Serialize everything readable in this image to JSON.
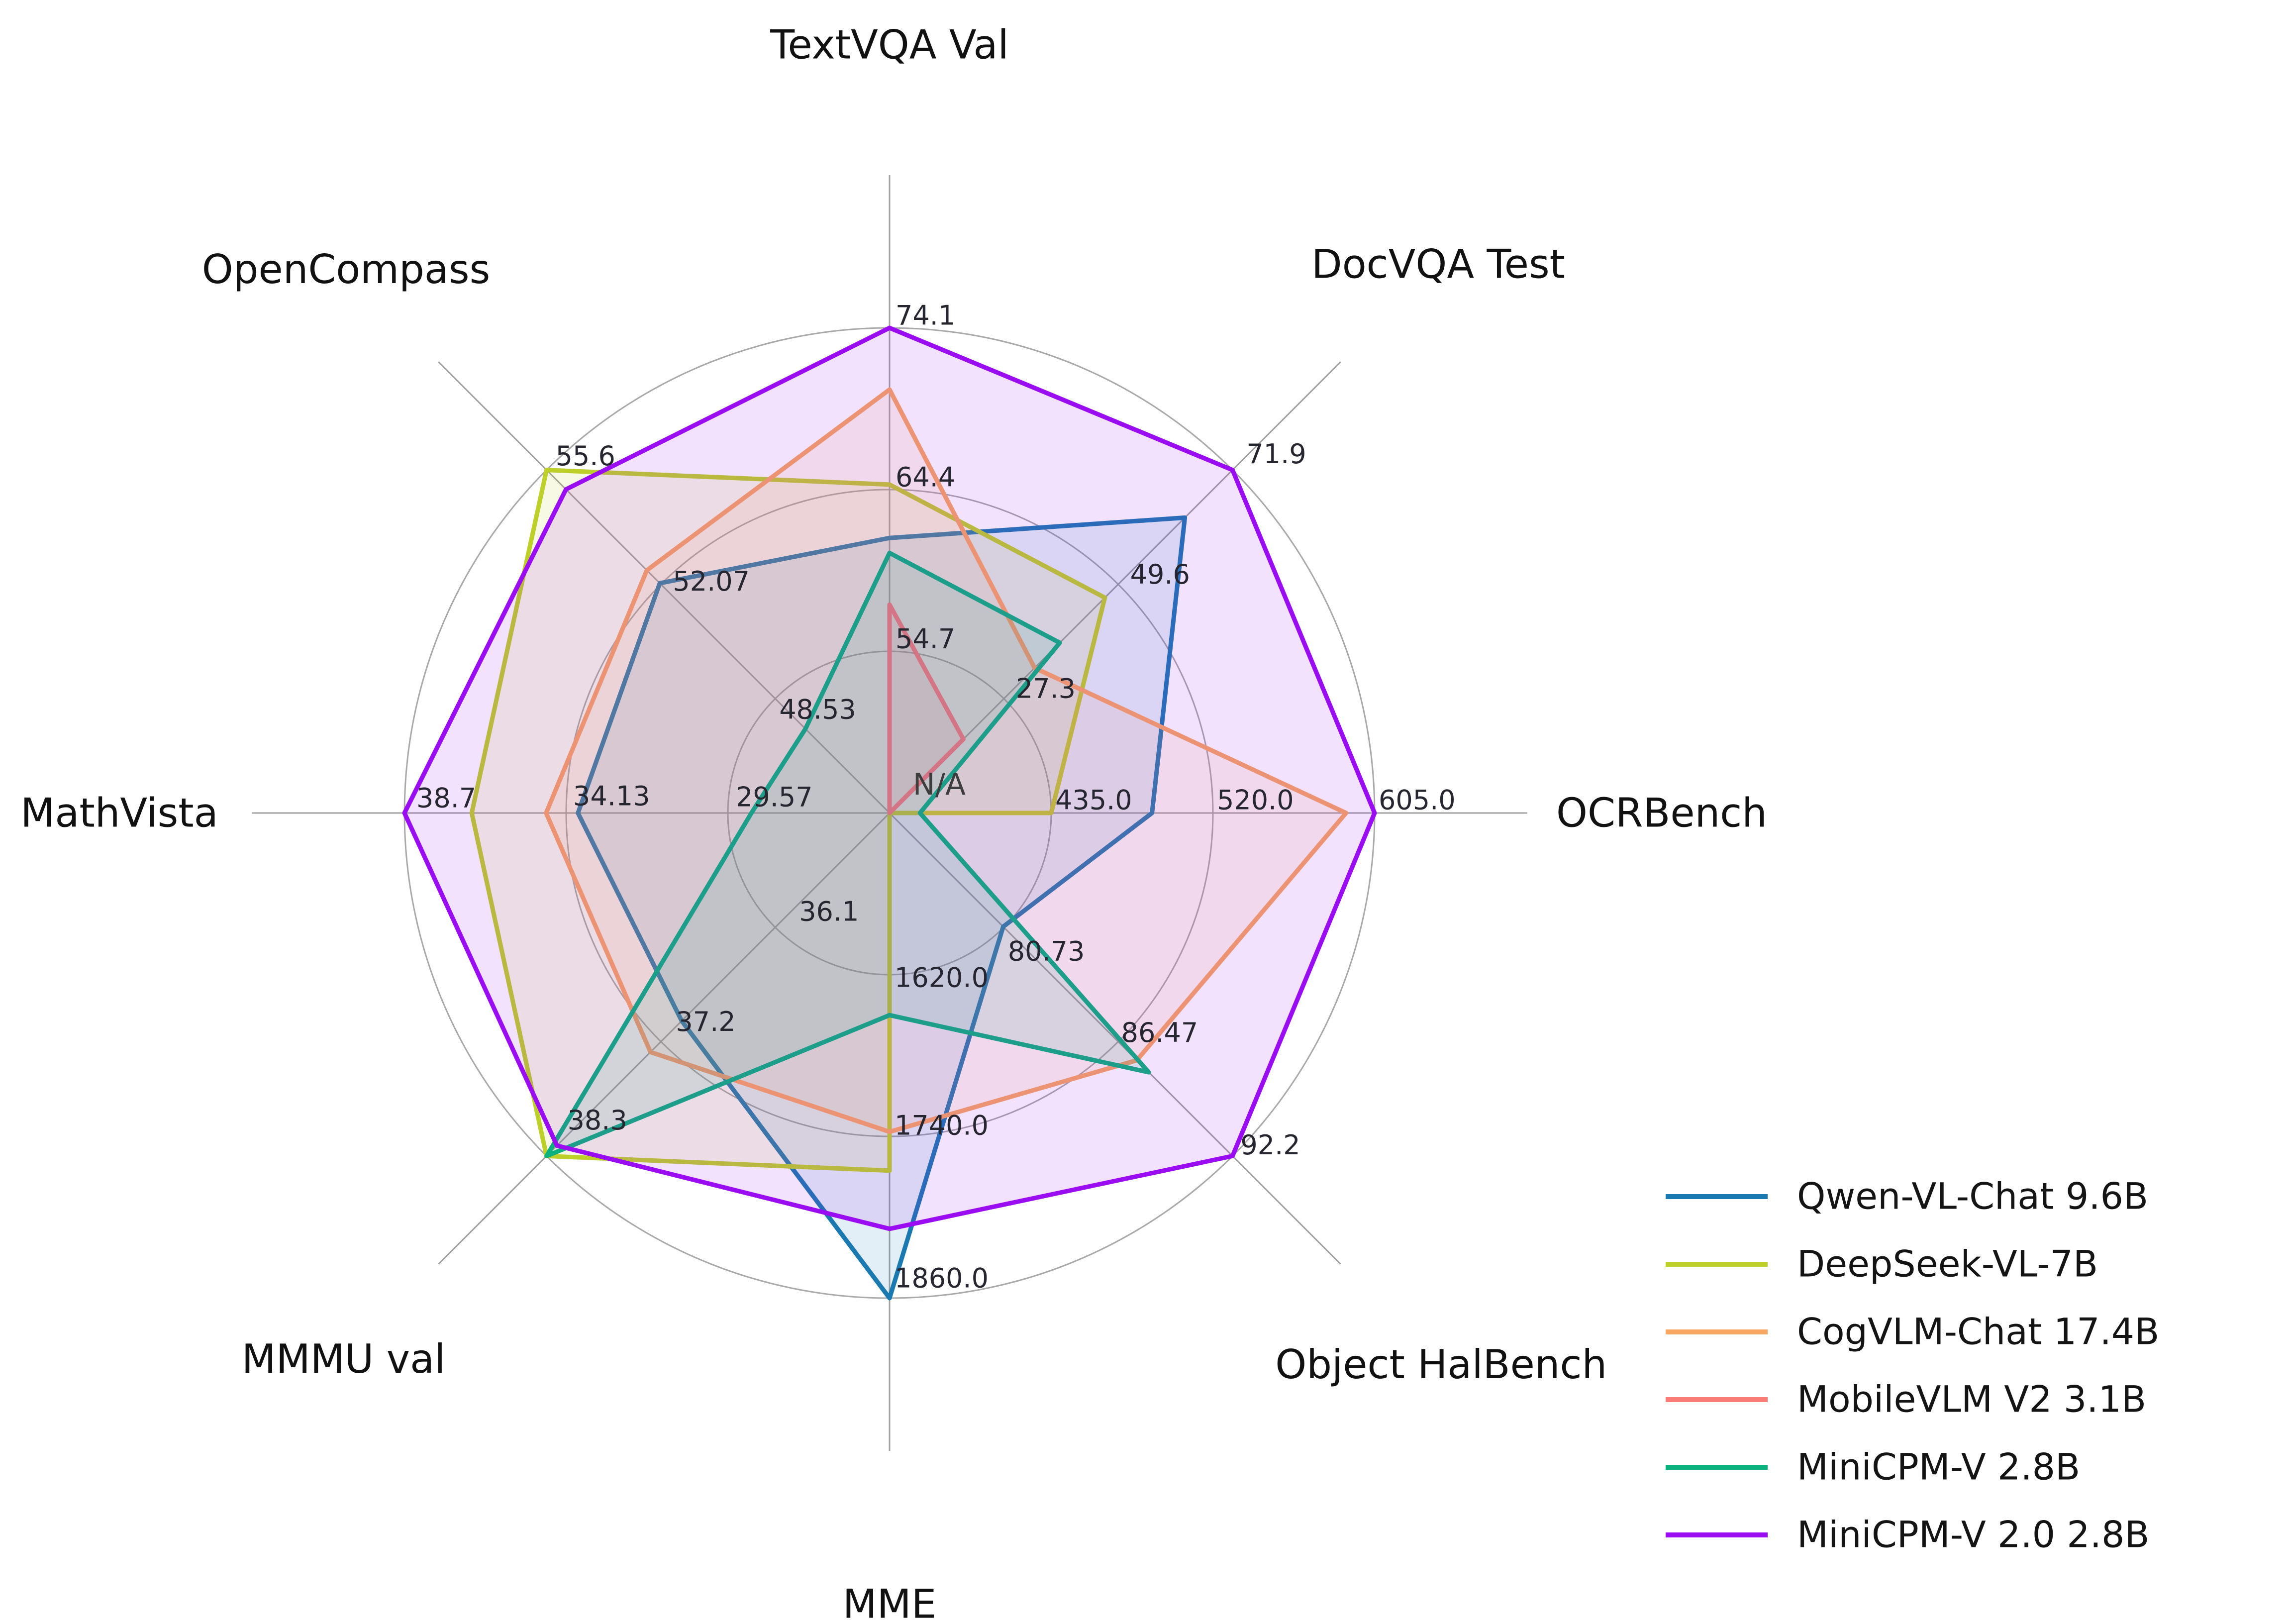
{
  "figure": {
    "background": "#ffffff",
    "missing_value_label": "N/A"
  },
  "chart_data": {
    "type": "radar",
    "title": "",
    "grid": true,
    "legend_position": "lower right",
    "ring_fractions": [
      0.3333,
      0.6667,
      1.0
    ],
    "axes": [
      {
        "label": "TextVQA Val",
        "min": 45.0,
        "max": 74.1,
        "ticks": [
          "54.7",
          "64.4",
          "74.1"
        ],
        "tick_values": [
          54.7,
          64.4,
          74.1
        ]
      },
      {
        "label": "DocVQA Test",
        "min": 5.0,
        "max": 71.9,
        "ticks": [
          "27.3",
          "49.6",
          "71.9"
        ],
        "tick_values": [
          27.3,
          49.6,
          71.9
        ]
      },
      {
        "label": "OCRBench",
        "min": 350.0,
        "max": 605.0,
        "ticks": [
          "435.0",
          "520.0",
          "605.0"
        ],
        "tick_values": [
          435.0,
          520.0,
          605.0
        ]
      },
      {
        "label": "Object HalBench",
        "min": 75.0,
        "max": 92.2,
        "ticks": [
          "80.73",
          "86.47",
          "92.2"
        ],
        "tick_values": [
          80.73,
          86.47,
          92.2
        ]
      },
      {
        "label": "MME",
        "min": 1500.0,
        "max": 1860.0,
        "ticks": [
          "1620.0",
          "1740.0",
          "1860.0"
        ],
        "tick_values": [
          1620.0,
          1740.0,
          1860.0
        ]
      },
      {
        "label": "MMMU val",
        "min": 35.0,
        "max": 38.3,
        "ticks": [
          "36.1",
          "37.2",
          "38.3"
        ],
        "tick_values": [
          36.1,
          37.2,
          38.3
        ]
      },
      {
        "label": "MathVista",
        "min": 25.0,
        "max": 38.7,
        "ticks": [
          "29.57",
          "34.13",
          "38.7"
        ],
        "tick_values": [
          29.57,
          34.13,
          38.7
        ]
      },
      {
        "label": "OpenCompass",
        "min": 45.0,
        "max": 55.6,
        "ticks": [
          "48.53",
          "52.07",
          "55.6"
        ],
        "tick_values": [
          48.53,
          52.07,
          55.6
        ]
      }
    ],
    "series": [
      {
        "name": "Qwen-VL-Chat 9.6B",
        "color": "#1b79b2",
        "values": [
          61.5,
          62.6,
          488.0,
          80.7,
          1860.0,
          37.0,
          33.8,
          52.1
        ]
      },
      {
        "name": "DeepSeek-VL-7B",
        "color": "#bdd02a",
        "values": [
          64.7,
          47.0,
          435.0,
          null,
          1765.4,
          38.3,
          36.8,
          55.6
        ]
      },
      {
        "name": "CogVLM-Chat 17.4B",
        "color": "#f8a662",
        "values": [
          70.4,
          33.3,
          590.0,
          87.4,
          1736.6,
          37.3,
          34.7,
          52.5
        ]
      },
      {
        "name": "MobileVLM V2 3.1B",
        "color": "#f97d76",
        "values": [
          57.5,
          19.4,
          null,
          null,
          null,
          null,
          null,
          null
        ]
      },
      {
        "name": "MiniCPM-V 2.8B",
        "color": "#0bb27e",
        "values": [
          60.6,
          38.2,
          366.0,
          88.0,
          1650.0,
          38.3,
          28.9,
          47.6
        ]
      },
      {
        "name": "MiniCPM-V 2.0 2.8B",
        "color": "#9a0df2",
        "values": [
          74.1,
          71.9,
          605.0,
          92.2,
          1808.6,
          38.2,
          38.7,
          55.0
        ]
      }
    ],
    "na_annotation": "N/A"
  }
}
